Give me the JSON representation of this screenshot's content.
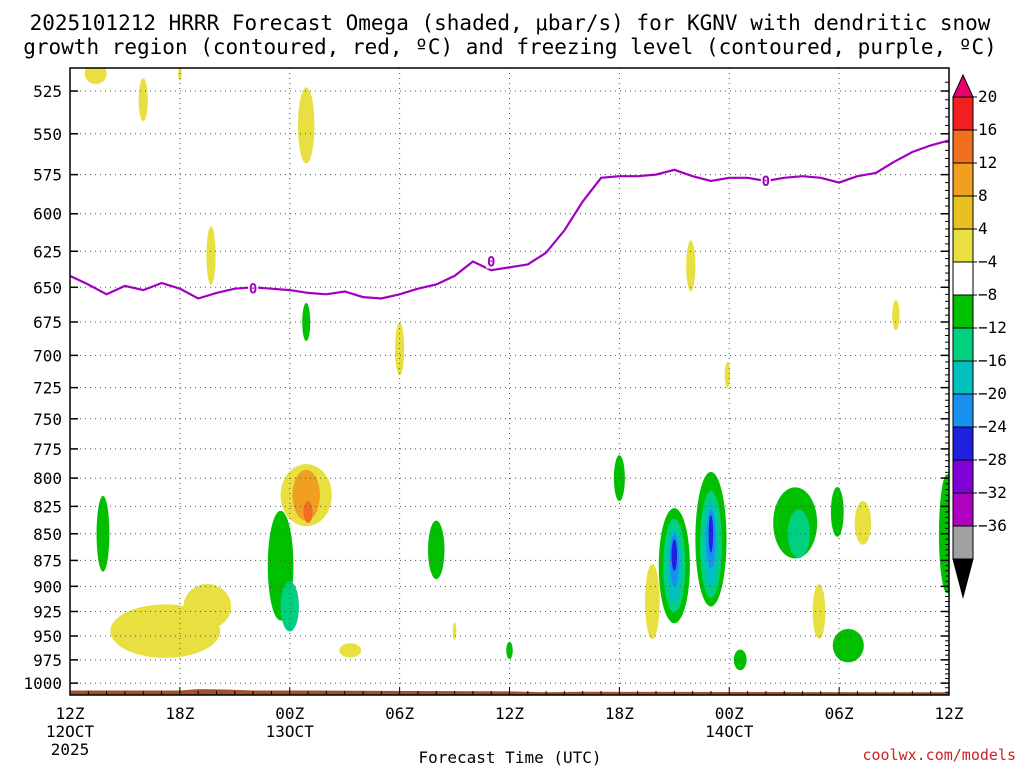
{
  "chart_data": {
    "type": "heatmap",
    "title_line1": "2025101212 HRRR Forecast Omega (shaded, μbar/s) for KGNV with dendritic snow",
    "title_line2": "growth region (contoured, red, ºC) and freezing level (contoured, purple, ºC)",
    "xlabel": "Forecast Time (UTC)",
    "credit": "coolwx.com/models",
    "x_ticks": [
      {
        "hours": 0,
        "label": "12Z",
        "sub1": "12OCT",
        "sub2": "2025"
      },
      {
        "hours": 6,
        "label": "18Z",
        "sub1": "",
        "sub2": ""
      },
      {
        "hours": 12,
        "label": "00Z",
        "sub1": "13OCT",
        "sub2": ""
      },
      {
        "hours": 18,
        "label": "06Z",
        "sub1": "",
        "sub2": ""
      },
      {
        "hours": 24,
        "label": "12Z",
        "sub1": "",
        "sub2": ""
      },
      {
        "hours": 30,
        "label": "18Z",
        "sub1": "",
        "sub2": ""
      },
      {
        "hours": 36,
        "label": "00Z",
        "sub1": "14OCT",
        "sub2": ""
      },
      {
        "hours": 42,
        "label": "06Z",
        "sub1": "",
        "sub2": ""
      },
      {
        "hours": 48,
        "label": "12Z",
        "sub1": "",
        "sub2": ""
      }
    ],
    "y_ticks": [
      525,
      550,
      575,
      600,
      625,
      650,
      675,
      700,
      725,
      750,
      775,
      800,
      825,
      850,
      875,
      900,
      925,
      950,
      975,
      1000
    ],
    "x_range_hours": [
      0,
      48
    ],
    "y_range_hPa": [
      1013,
      512
    ],
    "y_scale": "log-pressure",
    "grid": "dotted",
    "colorbar": {
      "labels": [
        "20",
        "16",
        "12",
        "8",
        "4",
        "−4",
        "−8",
        "−12",
        "−16",
        "−20",
        "−24",
        "−28",
        "−32",
        "−36"
      ],
      "colors": [
        "#e8006e",
        "#f02020",
        "#f07020",
        "#f0a020",
        "#e8c020",
        "#e8e040",
        "#ffffff",
        "#00c000",
        "#00d080",
        "#00c0c0",
        "#1890f0",
        "#2020e0",
        "#8000d8",
        "#b000c0",
        "#a0a0a0",
        "#000000"
      ]
    },
    "freezing_level": {
      "label": "0",
      "color": "#a000c0",
      "hours": [
        0,
        1,
        2,
        3,
        4,
        5,
        6,
        7,
        8,
        9,
        10,
        11,
        12,
        13,
        14,
        15,
        16,
        17,
        18,
        19,
        20,
        21,
        22,
        23,
        24,
        25,
        26,
        27,
        28,
        29,
        30,
        31,
        32,
        33,
        34,
        35,
        36,
        37,
        38,
        39,
        40,
        41,
        42,
        43,
        44,
        45,
        46,
        47,
        48
      ],
      "pressure": [
        642,
        648,
        655,
        649,
        652,
        647,
        651,
        658,
        654,
        651,
        650,
        651,
        652,
        654,
        655,
        653,
        657,
        658,
        655,
        651,
        648,
        642,
        632,
        638,
        636,
        634,
        626,
        611,
        592,
        577,
        576,
        576,
        575,
        572,
        576,
        579,
        577,
        577,
        579,
        577,
        576,
        577,
        580,
        576,
        574,
        567,
        561,
        557,
        554
      ]
    },
    "omega_regions": [
      {
        "value": -6,
        "t": 1.8,
        "p": 850,
        "dt": 0.35,
        "dp": 70
      },
      {
        "value": 6,
        "t": 1.4,
        "p": 515,
        "dt": 0.6,
        "dp": 12
      },
      {
        "value": 6,
        "t": 4.0,
        "p": 530,
        "dt": 0.25,
        "dp": 25
      },
      {
        "value": 6,
        "t": 6.0,
        "p": 515,
        "dt": 0.1,
        "dp": 8
      },
      {
        "value": 6,
        "t": 7.7,
        "p": 628,
        "dt": 0.25,
        "dp": 40
      },
      {
        "value": 6,
        "t": 12.9,
        "p": 545,
        "dt": 0.45,
        "dp": 45
      },
      {
        "value": 6,
        "t": 5.2,
        "p": 945,
        "dt": 3.0,
        "dp": 55
      },
      {
        "value": 6,
        "t": 7.5,
        "p": 920,
        "dt": 1.3,
        "dp": 45
      },
      {
        "value": -6,
        "t": 11.5,
        "p": 880,
        "dt": 0.7,
        "dp": 105
      },
      {
        "value": -10,
        "t": 12.0,
        "p": 920,
        "dt": 0.5,
        "dp": 50
      },
      {
        "value": 6,
        "t": 12.9,
        "p": 815,
        "dt": 1.4,
        "dp": 55
      },
      {
        "value": 10,
        "t": 12.9,
        "p": 815,
        "dt": 0.75,
        "dp": 45
      },
      {
        "value": 14,
        "t": 13.0,
        "p": 830,
        "dt": 0.25,
        "dp": 20
      },
      {
        "value": -6,
        "t": 12.9,
        "p": 675,
        "dt": 0.22,
        "dp": 28
      },
      {
        "value": 6,
        "t": 15.3,
        "p": 965,
        "dt": 0.6,
        "dp": 15
      },
      {
        "value": 6,
        "t": 18.0,
        "p": 695,
        "dt": 0.25,
        "dp": 40
      },
      {
        "value": -6,
        "t": 20.0,
        "p": 865,
        "dt": 0.45,
        "dp": 55
      },
      {
        "value": 6,
        "t": 21.0,
        "p": 945,
        "dt": 0.1,
        "dp": 18
      },
      {
        "value": -6,
        "t": 24.0,
        "p": 965,
        "dt": 0.18,
        "dp": 18
      },
      {
        "value": -6,
        "t": 30.0,
        "p": 800,
        "dt": 0.3,
        "dp": 40
      },
      {
        "value": 6,
        "t": 31.8,
        "p": 915,
        "dt": 0.4,
        "dp": 75
      },
      {
        "value": -6,
        "t": 33.0,
        "p": 880,
        "dt": 0.85,
        "dp": 110
      },
      {
        "value": -10,
        "t": 33.0,
        "p": 880,
        "dt": 0.6,
        "dp": 90
      },
      {
        "value": -14,
        "t": 33.0,
        "p": 880,
        "dt": 0.4,
        "dp": 70
      },
      {
        "value": -18,
        "t": 33.0,
        "p": 875,
        "dt": 0.25,
        "dp": 50
      },
      {
        "value": -22,
        "t": 33.0,
        "p": 870,
        "dt": 0.15,
        "dp": 30
      },
      {
        "value": 6,
        "t": 33.9,
        "p": 635,
        "dt": 0.25,
        "dp": 35
      },
      {
        "value": -6,
        "t": 35.0,
        "p": 855,
        "dt": 0.85,
        "dp": 125
      },
      {
        "value": -10,
        "t": 35.0,
        "p": 860,
        "dt": 0.6,
        "dp": 100
      },
      {
        "value": -14,
        "t": 35.0,
        "p": 860,
        "dt": 0.4,
        "dp": 80
      },
      {
        "value": -18,
        "t": 35.0,
        "p": 855,
        "dt": 0.25,
        "dp": 55
      },
      {
        "value": -22,
        "t": 35.0,
        "p": 850,
        "dt": 0.12,
        "dp": 35
      },
      {
        "value": 6,
        "t": 35.9,
        "p": 715,
        "dt": 0.15,
        "dp": 20
      },
      {
        "value": -6,
        "t": 36.6,
        "p": 975,
        "dt": 0.35,
        "dp": 22
      },
      {
        "value": -6,
        "t": 39.6,
        "p": 840,
        "dt": 1.2,
        "dp": 65
      },
      {
        "value": -10,
        "t": 39.8,
        "p": 850,
        "dt": 0.6,
        "dp": 45
      },
      {
        "value": 6,
        "t": 40.9,
        "p": 925,
        "dt": 0.35,
        "dp": 55
      },
      {
        "value": -6,
        "t": 41.9,
        "p": 830,
        "dt": 0.35,
        "dp": 45
      },
      {
        "value": 6,
        "t": 43.3,
        "p": 840,
        "dt": 0.45,
        "dp": 40
      },
      {
        "value": -6,
        "t": 42.5,
        "p": 960,
        "dt": 0.85,
        "dp": 35
      },
      {
        "value": 6,
        "t": 45.1,
        "p": 670,
        "dt": 0.2,
        "dp": 22
      },
      {
        "value": -6,
        "t": 47.9,
        "p": 850,
        "dt": 0.45,
        "dp": 110
      }
    ]
  }
}
